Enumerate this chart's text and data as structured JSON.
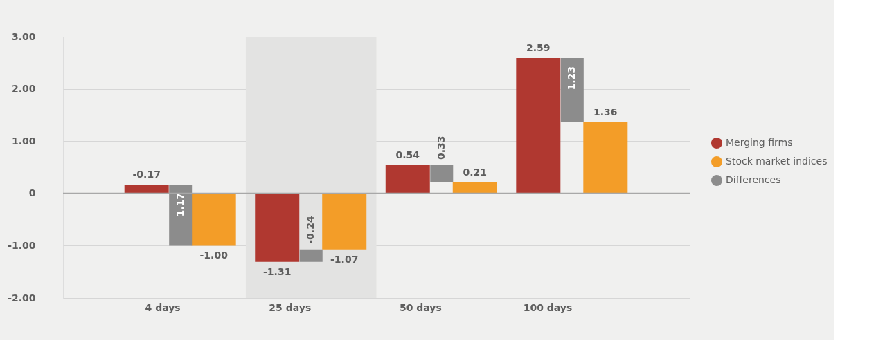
{
  "chart_data": {
    "type": "bar",
    "categories": [
      "4 days",
      "25 days",
      "50 days",
      "100 days"
    ],
    "series": [
      {
        "name": "Merging firms",
        "color": "#b03830",
        "values": [
          0.17,
          -1.31,
          0.54,
          2.59
        ],
        "value_labels": [
          null,
          "-1.31",
          "0.54",
          "2.59"
        ]
      },
      {
        "name": "Stock market indices",
        "color": "#f39d28",
        "values": [
          -1.0,
          -1.07,
          0.21,
          1.36
        ],
        "value_labels": [
          "-1.00",
          "-1.07",
          "0.21",
          "1.36"
        ]
      },
      {
        "name": "Differences",
        "color": "#8c8c8c",
        "base": [
          -1.0,
          -1.07,
          0.21,
          1.36
        ],
        "values": [
          1.17,
          -0.24,
          0.33,
          1.23
        ],
        "value_labels": [
          "1.17",
          "-0.24",
          "0.33",
          "1.23"
        ]
      }
    ],
    "ylim": [
      -2,
      3
    ],
    "yticks": [
      {
        "value": -2,
        "label": "-2.00"
      },
      {
        "value": -1,
        "label": "-1.00"
      },
      0,
      {
        "value": 1,
        "label": "1.00"
      },
      {
        "value": 2,
        "label": "2.00"
      },
      {
        "value": 3,
        "label": "3.00"
      }
    ],
    "grid": "y",
    "legend": "right",
    "ref_lines": [
      {
        "axis": "y",
        "value": 0,
        "color": "#a8a8a8"
      }
    ],
    "annotations": [
      {
        "text": "-0.17",
        "x": "4 days",
        "y": 0.17
      }
    ]
  }
}
